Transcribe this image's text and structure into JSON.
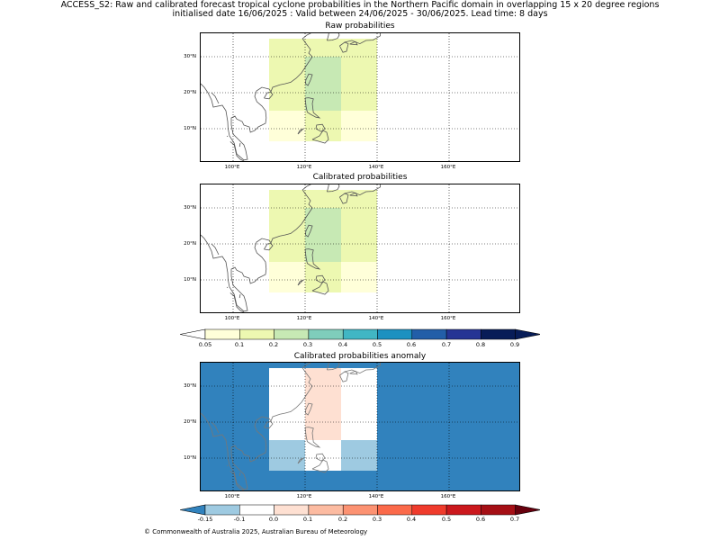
{
  "header": {
    "line1": "ACCESS_S2: Raw and calibrated forecast tropical cyclone probabilities in the Northern Pacific domain in overlapping 15 x 20 degree regions",
    "line2": "initialised date 16/06/2025 :  Valid between 24/06/2025 - 30/06/2025. Lead time: 8 days"
  },
  "panels": [
    {
      "title": "Raw probabilities",
      "lat_labels": [
        "30°N",
        "20°N",
        "10°N"
      ],
      "lon_labels": [
        "100°E",
        "120°E",
        "140°E",
        "160°E"
      ],
      "regions": [
        {
          "lon": [
            110,
            130
          ],
          "lat": [
            15,
            35
          ],
          "value": 0.15
        },
        {
          "lon": [
            130,
            140
          ],
          "lat": [
            15,
            35
          ],
          "value": 0.15
        },
        {
          "lon": [
            120,
            130
          ],
          "lat": [
            15,
            30
          ],
          "value": 0.25
        },
        {
          "lon": [
            110,
            120
          ],
          "lat": [
            6.5,
            15
          ],
          "value": 0.07
        },
        {
          "lon": [
            130,
            140
          ],
          "lat": [
            6.5,
            15
          ],
          "value": 0.07
        },
        {
          "lon": [
            120,
            130
          ],
          "lat": [
            6.5,
            15
          ],
          "value": 0.15
        }
      ]
    },
    {
      "title": "Calibrated probabilities",
      "lat_labels": [
        "30°N",
        "20°N",
        "10°N"
      ],
      "lon_labels": [
        "100°E",
        "120°E",
        "140°E",
        "160°E"
      ],
      "regions": [
        {
          "lon": [
            110,
            130
          ],
          "lat": [
            15,
            35
          ],
          "value": 0.15
        },
        {
          "lon": [
            130,
            140
          ],
          "lat": [
            15,
            35
          ],
          "value": 0.15
        },
        {
          "lon": [
            120,
            130
          ],
          "lat": [
            15,
            30
          ],
          "value": 0.25
        },
        {
          "lon": [
            110,
            120
          ],
          "lat": [
            6.5,
            15
          ],
          "value": 0.07
        },
        {
          "lon": [
            130,
            140
          ],
          "lat": [
            6.5,
            15
          ],
          "value": 0.07
        },
        {
          "lon": [
            120,
            130
          ],
          "lat": [
            6.5,
            15
          ],
          "value": 0.15
        }
      ]
    },
    {
      "title": "Calibrated probabilities anomaly",
      "lat_labels": [
        "30°N",
        "20°N",
        "10°N"
      ],
      "lon_labels": [
        "100°E",
        "120°E",
        "140°E",
        "160°E"
      ],
      "background_value": -0.2,
      "regions": [
        {
          "lon": [
            110,
            140
          ],
          "lat": [
            6.5,
            35
          ],
          "value": 0.0
        },
        {
          "lon": [
            120,
            130
          ],
          "lat": [
            15,
            35
          ],
          "value": 0.05
        },
        {
          "lon": [
            110,
            120
          ],
          "lat": [
            6.5,
            15
          ],
          "value": -0.1
        },
        {
          "lon": [
            130,
            140
          ],
          "lat": [
            6.5,
            15
          ],
          "value": -0.1
        }
      ]
    }
  ],
  "probability_colorbar": {
    "ticks": [
      "0.05",
      "0.1",
      "0.2",
      "0.3",
      "0.4",
      "0.5",
      "0.6",
      "0.7",
      "0.8",
      "0.9"
    ],
    "under_color": "#ffffff",
    "over_color": "#081d58",
    "colors": [
      "#ffffd9",
      "#edf8b1",
      "#c7e9b4",
      "#7fcdbb",
      "#41b6c4",
      "#1d91c0",
      "#225ea8",
      "#253494",
      "#081d58"
    ]
  },
  "anomaly_colorbar": {
    "ticks": [
      "-0.15",
      "-0.1",
      "0.0",
      "0.1",
      "0.2",
      "0.3",
      "0.4",
      "0.5",
      "0.6",
      "0.7"
    ],
    "under_color": "#3182bd",
    "over_color": "#67000d",
    "colors": [
      "#9ecae1",
      "#ffffff",
      "#fee0d2",
      "#fcbba1",
      "#fc9272",
      "#fb6a4a",
      "#ef3b2c",
      "#cb181d",
      "#a50f15"
    ]
  },
  "footer": "© Commonwealth of Australia 2025, Australian Bureau of Meteorology"
}
